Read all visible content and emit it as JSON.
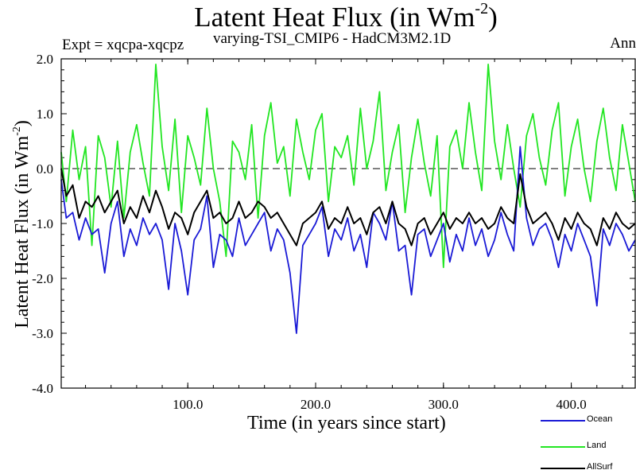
{
  "title": {
    "main": "Latent Heat Flux (in Wm",
    "sup": "-2",
    "close": ")"
  },
  "expt_label": "Expt = xqcpa-xqcpz",
  "subtitle": "varying-TSI_CMIP6 - HadCM3M2.1D",
  "season": "Ann",
  "chart_data": {
    "type": "line",
    "xlabel": "Time (in years since start)",
    "ylabel": {
      "main": "Latent Heat Flux (in Wm",
      "sup": "-2",
      "close": ")"
    },
    "xlim": [
      1,
      450
    ],
    "ylim": [
      -4.0,
      2.0
    ],
    "x_ticks": [
      100,
      200,
      300,
      400
    ],
    "x_tick_labels": [
      "100.0",
      "200.0",
      "300.0",
      "400.0"
    ],
    "y_ticks": [
      2,
      1,
      0,
      -1,
      -2,
      -3,
      -4
    ],
    "y_tick_labels": [
      "2.0",
      "1.0",
      "0.0",
      "-1.0",
      "-2.0",
      "-3.0",
      "-4.0"
    ],
    "reference_line": 0.0,
    "grid": false,
    "legend_position": "bottom-right",
    "series": [
      {
        "name": "Ocean",
        "color": "#1a1ad6",
        "x": [
          1,
          5,
          10,
          15,
          20,
          25,
          30,
          35,
          40,
          45,
          50,
          55,
          60,
          65,
          70,
          75,
          80,
          85,
          90,
          95,
          100,
          105,
          110,
          115,
          120,
          125,
          130,
          135,
          140,
          145,
          150,
          155,
          160,
          165,
          170,
          175,
          180,
          185,
          190,
          195,
          200,
          205,
          210,
          215,
          220,
          225,
          230,
          235,
          240,
          245,
          250,
          255,
          260,
          265,
          270,
          275,
          280,
          285,
          290,
          295,
          300,
          305,
          310,
          315,
          320,
          325,
          330,
          335,
          340,
          345,
          350,
          355,
          360,
          365,
          370,
          375,
          380,
          385,
          390,
          395,
          400,
          405,
          410,
          415,
          420,
          425,
          430,
          435,
          440,
          445,
          450
        ],
        "values": [
          -0.2,
          -0.9,
          -0.8,
          -1.3,
          -0.9,
          -1.2,
          -1.1,
          -1.9,
          -1.0,
          -0.6,
          -1.6,
          -1.1,
          -1.4,
          -0.9,
          -1.2,
          -1.0,
          -1.3,
          -2.2,
          -1.0,
          -1.5,
          -2.3,
          -1.3,
          -1.1,
          -0.5,
          -1.8,
          -1.2,
          -1.3,
          -1.6,
          -0.9,
          -1.4,
          -1.2,
          -1.0,
          -0.8,
          -1.5,
          -1.1,
          -1.3,
          -1.9,
          -3.0,
          -1.4,
          -1.2,
          -1.0,
          -0.7,
          -1.6,
          -1.1,
          -1.3,
          -0.9,
          -1.5,
          -1.2,
          -1.8,
          -0.8,
          -1.0,
          -1.3,
          -0.6,
          -1.5,
          -1.4,
          -2.3,
          -1.2,
          -1.1,
          -1.6,
          -1.3,
          -1.0,
          -1.7,
          -1.2,
          -1.5,
          -0.9,
          -1.4,
          -1.1,
          -1.6,
          -1.3,
          -0.8,
          -1.2,
          -1.5,
          0.4,
          -0.9,
          -1.4,
          -1.1,
          -1.0,
          -1.3,
          -1.8,
          -1.2,
          -1.5,
          -1.0,
          -1.3,
          -1.6,
          -2.5,
          -1.1,
          -1.4,
          -1.0,
          -1.2,
          -1.5,
          -1.3
        ]
      },
      {
        "name": "Land",
        "color": "#22e622",
        "x": [
          1,
          5,
          10,
          15,
          20,
          25,
          30,
          35,
          40,
          45,
          50,
          55,
          60,
          65,
          70,
          75,
          80,
          85,
          90,
          95,
          100,
          105,
          110,
          115,
          120,
          125,
          130,
          135,
          140,
          145,
          150,
          155,
          160,
          165,
          170,
          175,
          180,
          185,
          190,
          195,
          200,
          205,
          210,
          215,
          220,
          225,
          230,
          235,
          240,
          245,
          250,
          255,
          260,
          265,
          270,
          275,
          280,
          285,
          290,
          295,
          300,
          305,
          310,
          315,
          320,
          325,
          330,
          335,
          340,
          345,
          350,
          355,
          360,
          365,
          370,
          375,
          380,
          385,
          390,
          395,
          400,
          405,
          410,
          415,
          420,
          425,
          430,
          435,
          440,
          445,
          450
        ],
        "values": [
          0.3,
          -0.6,
          0.7,
          -0.2,
          0.4,
          -1.4,
          0.6,
          0.2,
          -0.7,
          0.5,
          -0.9,
          0.3,
          0.8,
          0.1,
          -0.5,
          1.9,
          0.4,
          -0.4,
          0.9,
          -0.8,
          0.6,
          0.2,
          -0.3,
          1.1,
          0.0,
          -0.6,
          -1.6,
          0.5,
          0.3,
          -0.2,
          0.8,
          -0.9,
          0.6,
          1.2,
          0.1,
          0.4,
          -0.5,
          0.9,
          0.3,
          -0.2,
          0.7,
          1.0,
          -0.6,
          0.4,
          0.2,
          0.6,
          -0.3,
          1.1,
          0.0,
          0.5,
          1.4,
          -0.4,
          0.3,
          0.8,
          -0.8,
          0.2,
          0.9,
          0.1,
          -0.5,
          0.6,
          -1.8,
          0.4,
          0.7,
          0.0,
          1.2,
          0.3,
          -0.4,
          1.9,
          0.5,
          -0.2,
          0.8,
          0.0,
          -0.7,
          0.6,
          1.0,
          0.2,
          -0.3,
          0.7,
          1.2,
          -0.5,
          0.4,
          0.9,
          0.0,
          -0.6,
          0.5,
          1.1,
          0.2,
          -0.4,
          0.8,
          0.1,
          -0.6
        ]
      },
      {
        "name": "AllSurf",
        "color": "#000000",
        "x": [
          1,
          5,
          10,
          15,
          20,
          25,
          30,
          35,
          40,
          45,
          50,
          55,
          60,
          65,
          70,
          75,
          80,
          85,
          90,
          95,
          100,
          105,
          110,
          115,
          120,
          125,
          130,
          135,
          140,
          145,
          150,
          155,
          160,
          165,
          170,
          175,
          180,
          185,
          190,
          195,
          200,
          205,
          210,
          215,
          220,
          225,
          230,
          235,
          240,
          245,
          250,
          255,
          260,
          265,
          270,
          275,
          280,
          285,
          290,
          295,
          300,
          305,
          310,
          315,
          320,
          325,
          330,
          335,
          340,
          345,
          350,
          355,
          360,
          365,
          370,
          375,
          380,
          385,
          390,
          395,
          400,
          405,
          410,
          415,
          420,
          425,
          430,
          435,
          440,
          445,
          450
        ],
        "values": [
          0.0,
          -0.5,
          -0.3,
          -0.9,
          -0.6,
          -0.7,
          -0.5,
          -0.8,
          -0.6,
          -0.4,
          -1.0,
          -0.7,
          -0.9,
          -0.5,
          -0.8,
          -0.4,
          -0.7,
          -1.1,
          -0.8,
          -0.9,
          -1.2,
          -0.8,
          -0.6,
          -0.4,
          -0.9,
          -0.8,
          -1.0,
          -0.9,
          -0.6,
          -0.9,
          -0.8,
          -0.6,
          -0.7,
          -0.9,
          -0.8,
          -1.0,
          -1.2,
          -1.4,
          -1.0,
          -0.9,
          -0.8,
          -0.6,
          -1.1,
          -0.9,
          -1.0,
          -0.7,
          -1.0,
          -0.9,
          -1.2,
          -0.8,
          -0.7,
          -1.0,
          -0.6,
          -1.0,
          -1.1,
          -1.4,
          -1.0,
          -0.9,
          -1.2,
          -1.0,
          -0.8,
          -1.1,
          -0.9,
          -1.0,
          -0.8,
          -1.0,
          -0.9,
          -1.1,
          -1.0,
          -0.7,
          -0.9,
          -1.0,
          -0.1,
          -0.7,
          -1.0,
          -0.9,
          -0.8,
          -1.0,
          -1.3,
          -0.9,
          -1.1,
          -0.8,
          -1.0,
          -1.1,
          -1.4,
          -0.9,
          -1.1,
          -0.8,
          -1.0,
          -1.1,
          -1.0
        ]
      }
    ]
  }
}
